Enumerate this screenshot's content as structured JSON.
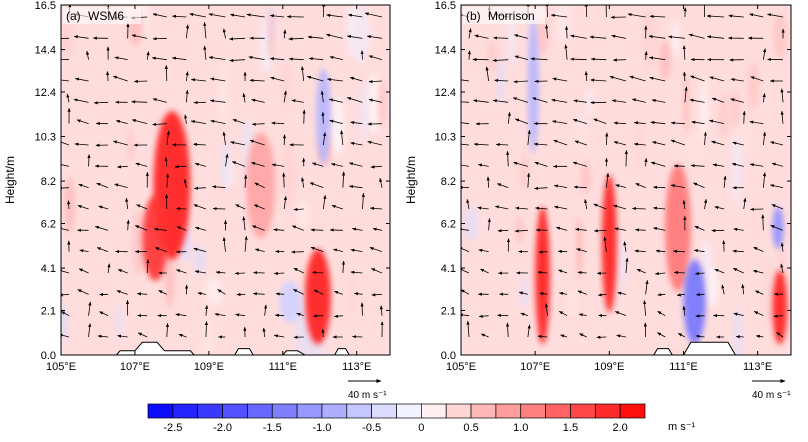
{
  "chart_data": [
    {
      "type": "heatmap",
      "panel": "(a)",
      "title": "WSM6",
      "ylabel": "Height/m",
      "xlabel": "",
      "x_ticks": [
        "105°E",
        "107°E",
        "109°E",
        "111°E",
        "113°E"
      ],
      "x_tick_values": [
        105,
        107,
        109,
        111,
        113
      ],
      "xlim": [
        105,
        113.9
      ],
      "y_ticks": [
        "0.0",
        "2.1",
        "4.1",
        "6.2",
        "8.2",
        "10.3",
        "12.4",
        "14.4",
        "16.5"
      ],
      "y_tick_values": [
        0.0,
        2.1,
        4.1,
        6.2,
        8.2,
        10.3,
        12.4,
        14.4,
        16.5
      ],
      "ylim": [
        0,
        16.5
      ],
      "grid": false,
      "reference_vector": "40 m s⁻¹",
      "shaded_features": [
        {
          "lon_range": [
            107.5,
            108.5
          ],
          "height_range": [
            4.5,
            11.5
          ],
          "value": 2.0
        },
        {
          "lon_range": [
            107.2,
            107.9
          ],
          "height_range": [
            3.5,
            7.5
          ],
          "value": 1.8
        },
        {
          "lon_range": [
            111.6,
            112.3
          ],
          "height_range": [
            0.5,
            5.0
          ],
          "value": 2.0
        },
        {
          "lon_range": [
            110.0,
            110.8
          ],
          "height_range": [
            5.5,
            10.5
          ],
          "value": 0.8
        },
        {
          "lon_range": [
            111.9,
            112.3
          ],
          "height_range": [
            9.0,
            13.5
          ],
          "value": -0.8
        },
        {
          "lon_range": [
            110.9,
            111.5
          ],
          "height_range": [
            1.5,
            3.5
          ],
          "value": -0.5
        }
      ],
      "terrain": [
        [
          105.0,
          0.0
        ],
        [
          106.5,
          0.0
        ],
        [
          106.6,
          0.2
        ],
        [
          107.0,
          0.2
        ],
        [
          107.2,
          0.6
        ],
        [
          107.6,
          0.6
        ],
        [
          107.8,
          0.2
        ],
        [
          108.5,
          0.2
        ],
        [
          108.6,
          0.0
        ],
        [
          109.7,
          0.0
        ],
        [
          109.8,
          0.3
        ],
        [
          110.1,
          0.3
        ],
        [
          110.2,
          0.0
        ],
        [
          111.0,
          0.0
        ],
        [
          111.1,
          0.2
        ],
        [
          111.4,
          0.2
        ],
        [
          111.6,
          0.0
        ],
        [
          112.4,
          0.0
        ],
        [
          112.5,
          0.3
        ],
        [
          112.7,
          0.3
        ],
        [
          112.8,
          0.0
        ],
        [
          113.9,
          0.0
        ]
      ]
    },
    {
      "type": "heatmap",
      "panel": "(b)",
      "title": "Morrison",
      "ylabel": "Height/m",
      "xlabel": "",
      "x_ticks": [
        "105°E",
        "107°E",
        "109°E",
        "111°E",
        "113°E"
      ],
      "x_tick_values": [
        105,
        107,
        109,
        111,
        113
      ],
      "xlim": [
        105,
        113.9
      ],
      "y_ticks": [
        "0.0",
        "2.1",
        "4.1",
        "6.2",
        "8.2",
        "10.3",
        "12.4",
        "14.4",
        "16.5"
      ],
      "y_tick_values": [
        0.0,
        2.1,
        4.1,
        6.2,
        8.2,
        10.3,
        12.4,
        14.4,
        16.5
      ],
      "ylim": [
        0,
        16.5
      ],
      "grid": false,
      "reference_vector": "40 m s⁻¹",
      "shaded_features": [
        {
          "lon_range": [
            107.0,
            107.4
          ],
          "height_range": [
            0.5,
            7.0
          ],
          "value": 2.0
        },
        {
          "lon_range": [
            108.8,
            109.2
          ],
          "height_range": [
            2.0,
            8.5
          ],
          "value": 2.0
        },
        {
          "lon_range": [
            110.5,
            111.2
          ],
          "height_range": [
            3.0,
            9.0
          ],
          "value": 1.2
        },
        {
          "lon_range": [
            113.4,
            113.8
          ],
          "height_range": [
            0.5,
            4.0
          ],
          "value": 2.0
        },
        {
          "lon_range": [
            113.4,
            113.7
          ],
          "height_range": [
            5.0,
            7.0
          ],
          "value": -1.2
        },
        {
          "lon_range": [
            111.0,
            111.6
          ],
          "height_range": [
            0.5,
            4.5
          ],
          "value": -1.5
        },
        {
          "lon_range": [
            106.8,
            107.1
          ],
          "height_range": [
            9.5,
            16.0
          ],
          "value": -0.8
        }
      ],
      "terrain": [
        [
          105.0,
          0.0
        ],
        [
          110.2,
          0.0
        ],
        [
          110.3,
          0.3
        ],
        [
          110.6,
          0.3
        ],
        [
          110.7,
          0.0
        ],
        [
          111.0,
          0.0
        ],
        [
          111.2,
          0.6
        ],
        [
          112.2,
          0.6
        ],
        [
          112.4,
          0.0
        ],
        [
          113.9,
          0.0
        ]
      ]
    }
  ],
  "colorbar": {
    "levels": [
      -2.75,
      -2.5,
      -2.25,
      -2.0,
      -1.75,
      -1.5,
      -1.25,
      -1.0,
      -0.75,
      -0.5,
      -0.25,
      0,
      0.25,
      0.5,
      0.75,
      1.0,
      1.25,
      1.5,
      1.75,
      2.0,
      2.25
    ],
    "tick_labels": [
      "-2.5",
      "-2.0",
      "-1.5",
      "-1.0",
      "-0.5",
      "0",
      "0.5",
      "1.0",
      "1.5",
      "2.0"
    ],
    "tick_values": [
      -2.5,
      -2.0,
      -1.5,
      -1.0,
      -0.5,
      0,
      0.5,
      1.0,
      1.5,
      2.0
    ],
    "unit": "m s⁻¹",
    "min_color": "#0000ff",
    "mid_color": "#ffffff",
    "max_color": "#ff0000"
  },
  "ref_vector_label": "40 m s⁻¹"
}
